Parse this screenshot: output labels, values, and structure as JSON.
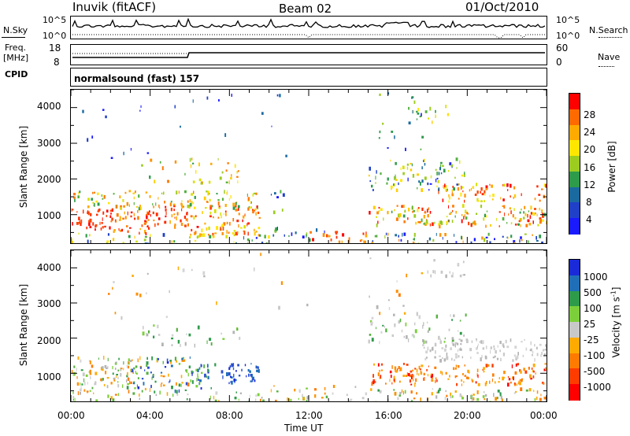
{
  "header": {
    "station": "Inuvik (fitACF)",
    "beam": "Beam 02",
    "date": "01/Oct/2010"
  },
  "top_panels": {
    "nsky_label": "N.Sky",
    "nsky_ticks": [
      "10^5",
      "10^0"
    ],
    "nsearch_label": "N.Search",
    "nsearch_ticks": [
      "10^5",
      "10^0"
    ],
    "freq_label_line1": "Freq.",
    "freq_label_line2": "[MHz]",
    "freq_ticks": [
      "18",
      "8"
    ],
    "nave_label": "Nave",
    "nave_ticks": [
      "60",
      "0"
    ],
    "cpid_label": "CPID",
    "cpid_text": "normalsound (fast) 157"
  },
  "chart_data": [
    {
      "type": "heatmap",
      "title": "",
      "ylabel": "Slant Range [km]",
      "xlabel": "",
      "y_ticks": [
        "4000",
        "3000",
        "2000",
        "1000"
      ],
      "ylim": [
        200,
        4500
      ],
      "colorbar_label": "Power [dB]",
      "colorbar_ticks": [
        "28",
        "24",
        "20",
        "16",
        "12",
        "8",
        "4"
      ],
      "colorbar_colors": [
        "#ff0000",
        "#ff6a00",
        "#ffaa00",
        "#ffe600",
        "#9ccc20",
        "#2e9b4a",
        "#1a6aa0",
        "#2040c8",
        "#1a1aff"
      ]
    },
    {
      "type": "heatmap",
      "title": "",
      "ylabel": "Slant Range [km]",
      "xlabel": "Time UT",
      "x_ticks": [
        "00:00",
        "04:00",
        "08:00",
        "12:00",
        "16:00",
        "20:00",
        "00:00"
      ],
      "y_ticks": [
        "4000",
        "3000",
        "2000",
        "1000"
      ],
      "ylim": [
        200,
        4500
      ],
      "colorbar_label_main": "Velocity",
      "colorbar_label_unit": "[m s",
      "colorbar_label_exp": "-1",
      "colorbar_label_close": "]",
      "colorbar_ticks": [
        "1000",
        "500",
        "100",
        "25",
        "-25",
        "-100",
        "-500",
        "-1000"
      ],
      "colorbar_colors": [
        "#1a2ad8",
        "#1f6fb8",
        "#2e9b4a",
        "#7ccf3a",
        "#c8c8c8",
        "#ffaa00",
        "#ff7a00",
        "#ff3c00",
        "#ff0000"
      ]
    }
  ]
}
